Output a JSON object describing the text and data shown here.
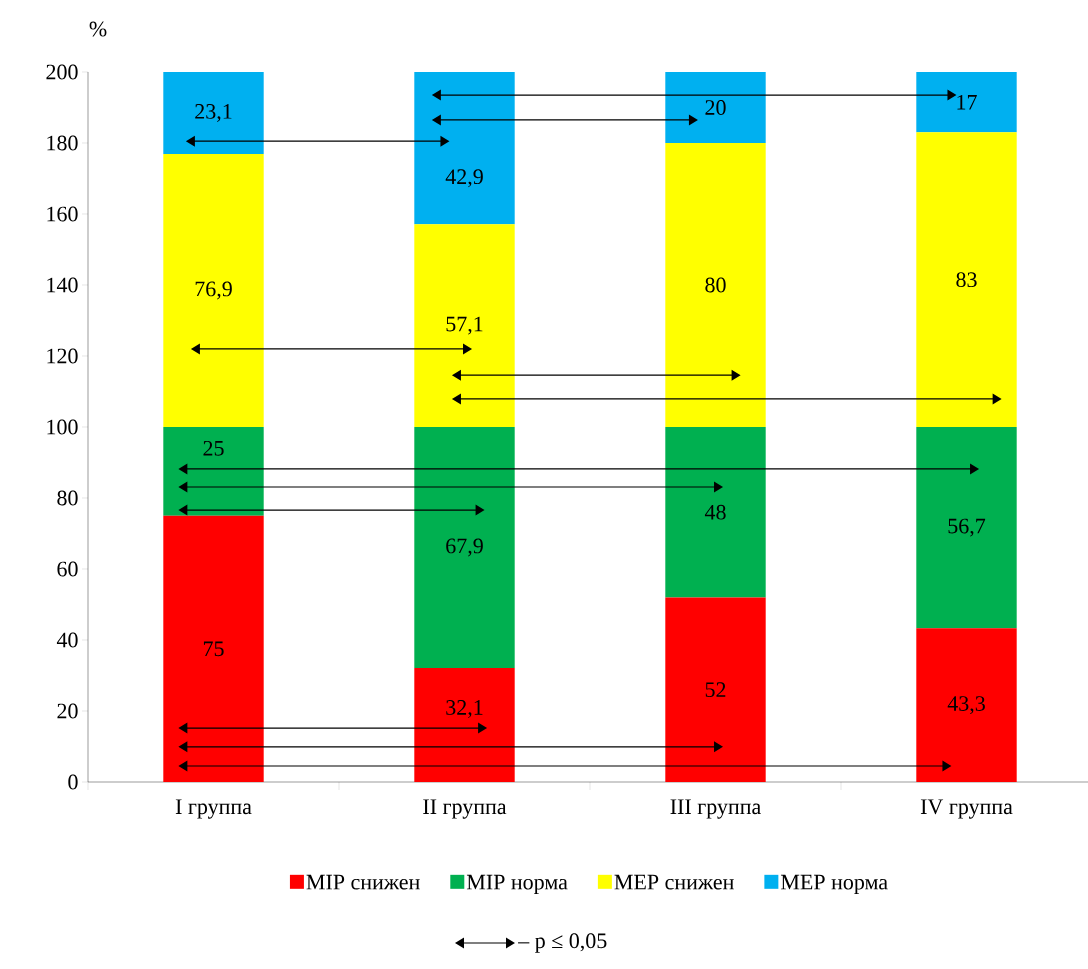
{
  "chart_data": {
    "type": "bar",
    "stacked": true,
    "ylabel": "%",
    "categories": [
      "I группа",
      "II группа",
      "III группа",
      "IV группа"
    ],
    "ylim": [
      0,
      200
    ],
    "yticks": [
      0,
      20,
      40,
      60,
      80,
      100,
      120,
      140,
      160,
      180,
      200
    ],
    "legend": "bottom",
    "series": [
      {
        "name": "MIP снижен",
        "color": "#ff0000",
        "values": [
          75,
          32.1,
          52,
          43.3
        ],
        "value_labels": [
          "75",
          "32,1",
          "52",
          "43,3"
        ]
      },
      {
        "name": "MIP норма",
        "color": "#00b050",
        "values": [
          25,
          67.9,
          48,
          56.7
        ],
        "value_labels": [
          "25",
          "67,9",
          "48",
          "56,7"
        ]
      },
      {
        "name": "MEP снижен",
        "color": "#ffff00",
        "values": [
          76.9,
          57.1,
          80,
          83
        ],
        "value_labels": [
          "76,9",
          "57,1",
          "80",
          "83"
        ]
      },
      {
        "name": "MEP  норма",
        "color": "#00b0f0",
        "values": [
          23.1,
          42.9,
          20,
          17
        ],
        "value_labels": [
          "23,1",
          "42,9",
          "20",
          "17"
        ]
      }
    ],
    "annotations": [
      "– p ≤ 0,05"
    ]
  }
}
